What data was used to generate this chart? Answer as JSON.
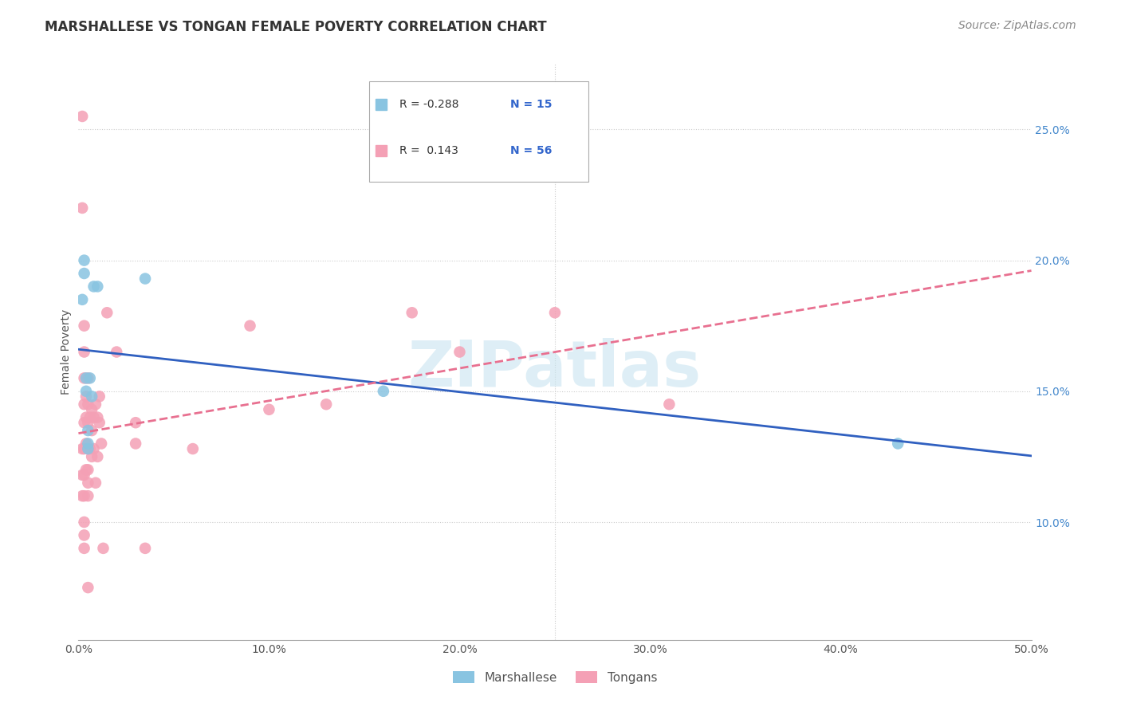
{
  "title": "MARSHALLESE VS TONGAN FEMALE POVERTY CORRELATION CHART",
  "source": "Source: ZipAtlas.com",
  "ylabel": "Female Poverty",
  "watermark": "ZIPatlas",
  "xlim": [
    0.0,
    0.5
  ],
  "ylim": [
    0.055,
    0.275
  ],
  "xticks": [
    0.0,
    0.1,
    0.2,
    0.3,
    0.4,
    0.5
  ],
  "xtick_labels": [
    "0.0%",
    "10.0%",
    "20.0%",
    "30.0%",
    "40.0%",
    "50.0%"
  ],
  "yticks_right": [
    0.1,
    0.15,
    0.2,
    0.25
  ],
  "ytick_right_labels": [
    "10.0%",
    "15.0%",
    "20.0%",
    "25.0%"
  ],
  "marshallese_color": "#89c4e1",
  "tongan_color": "#f4a0b5",
  "marshallese_line_color": "#3060c0",
  "tongan_line_color": "#e87090",
  "legend_R_marshallese": "-0.288",
  "legend_N_marshallese": "15",
  "legend_R_tongan": "0.143",
  "legend_N_tongan": "56",
  "marshallese_x": [
    0.002,
    0.003,
    0.003,
    0.004,
    0.004,
    0.005,
    0.005,
    0.005,
    0.006,
    0.007,
    0.008,
    0.01,
    0.035,
    0.16,
    0.43
  ],
  "marshallese_y": [
    0.185,
    0.2,
    0.195,
    0.155,
    0.15,
    0.135,
    0.13,
    0.128,
    0.155,
    0.148,
    0.19,
    0.19,
    0.193,
    0.15,
    0.13
  ],
  "tongan_x": [
    0.002,
    0.002,
    0.002,
    0.002,
    0.002,
    0.003,
    0.003,
    0.003,
    0.003,
    0.003,
    0.003,
    0.003,
    0.003,
    0.003,
    0.003,
    0.003,
    0.004,
    0.004,
    0.004,
    0.004,
    0.005,
    0.005,
    0.005,
    0.005,
    0.005,
    0.005,
    0.005,
    0.005,
    0.006,
    0.006,
    0.007,
    0.007,
    0.007,
    0.008,
    0.008,
    0.009,
    0.009,
    0.01,
    0.01,
    0.011,
    0.011,
    0.012,
    0.013,
    0.015,
    0.02,
    0.03,
    0.03,
    0.035,
    0.06,
    0.09,
    0.1,
    0.13,
    0.175,
    0.2,
    0.25,
    0.31
  ],
  "tongan_y": [
    0.255,
    0.22,
    0.128,
    0.118,
    0.11,
    0.175,
    0.165,
    0.155,
    0.145,
    0.138,
    0.128,
    0.118,
    0.11,
    0.1,
    0.095,
    0.09,
    0.148,
    0.14,
    0.13,
    0.12,
    0.155,
    0.145,
    0.138,
    0.128,
    0.12,
    0.115,
    0.11,
    0.075,
    0.14,
    0.128,
    0.143,
    0.135,
    0.125,
    0.14,
    0.128,
    0.145,
    0.115,
    0.14,
    0.125,
    0.148,
    0.138,
    0.13,
    0.09,
    0.18,
    0.165,
    0.138,
    0.13,
    0.09,
    0.128,
    0.175,
    0.143,
    0.145,
    0.18,
    0.165,
    0.18,
    0.145
  ],
  "grid_color": "#cccccc",
  "grid_linestyle": "dotted",
  "title_fontsize": 12,
  "axis_fontsize": 10,
  "tick_fontsize": 10,
  "source_fontsize": 10
}
